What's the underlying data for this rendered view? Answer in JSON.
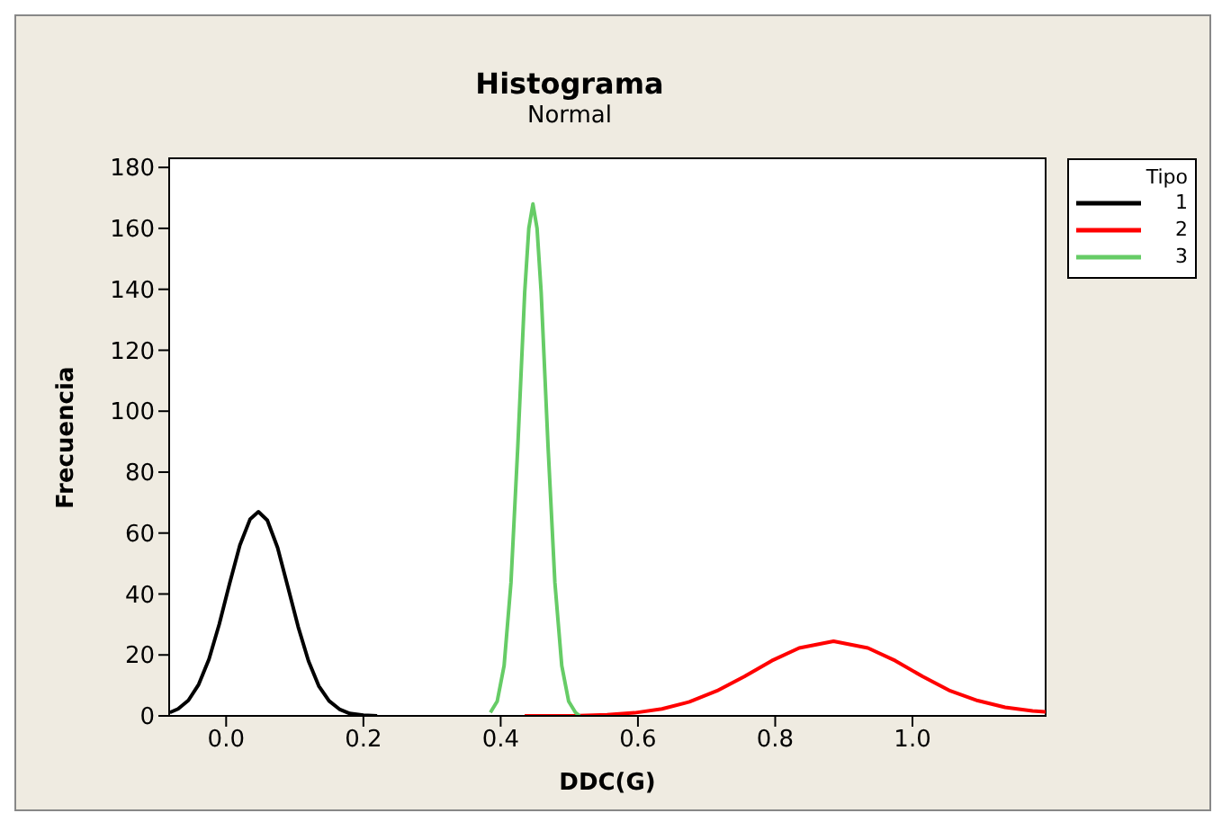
{
  "chart_data": {
    "type": "line",
    "title": "Histograma",
    "subtitle": "Normal",
    "xlabel": "DDC(G)",
    "ylabel": "Frecuencia",
    "legend_title": "Tipo",
    "legend": "right",
    "marker": "none",
    "line_style": "solid",
    "xlim": [
      -0.083,
      1.194
    ],
    "xticks": [
      {
        "value": 0,
        "label": "0.0"
      },
      0.2,
      0.4,
      0.6,
      0.8,
      {
        "value": 1,
        "label": "1.0"
      }
    ],
    "ylim": [
      0,
      183
    ],
    "yticks": [
      0,
      20,
      40,
      60,
      80,
      100,
      120,
      140,
      160,
      180
    ],
    "series": [
      {
        "name": "1",
        "color": "#000000",
        "x": [
          -0.082,
          -0.07,
          -0.055,
          -0.04,
          -0.025,
          -0.01,
          0.005,
          0.02,
          0.035,
          0.047,
          0.06,
          0.075,
          0.09,
          0.105,
          0.12,
          0.135,
          0.15,
          0.165,
          0.18,
          0.2,
          0.22
        ],
        "values": [
          1.1,
          2.3,
          5.1,
          10.3,
          18.6,
          30.1,
          43.4,
          56,
          64.6,
          67,
          64.2,
          55.2,
          42.3,
          29.2,
          18,
          9.8,
          4.9,
          2.2,
          0.8,
          0.2,
          0
        ]
      },
      {
        "name": "2",
        "color": "#ff0000",
        "x": [
          0.435,
          0.475,
          0.515,
          0.555,
          0.595,
          0.635,
          0.675,
          0.715,
          0.755,
          0.795,
          0.835,
          0.885,
          0.935,
          0.975,
          1.015,
          1.055,
          1.095,
          1.135,
          1.175,
          1.194
        ],
        "values": [
          0,
          0,
          0.1,
          0.4,
          1,
          2.3,
          4.6,
          8.2,
          12.9,
          18.1,
          22.3,
          24.5,
          22.3,
          18.1,
          12.9,
          8.2,
          5,
          2.8,
          1.6,
          1.3
        ]
      },
      {
        "name": "3",
        "color": "#66cc66",
        "x": [
          0.385,
          0.395,
          0.405,
          0.415,
          0.425,
          0.435,
          0.441,
          0.447,
          0.453,
          0.459,
          0.469,
          0.479,
          0.489,
          0.499,
          0.509,
          0.515
        ],
        "values": [
          1.1,
          4.8,
          16.5,
          43.7,
          88.6,
          139,
          160,
          168,
          160,
          139,
          88.6,
          43.7,
          16.5,
          4.8,
          1.1,
          0
        ]
      }
    ]
  }
}
